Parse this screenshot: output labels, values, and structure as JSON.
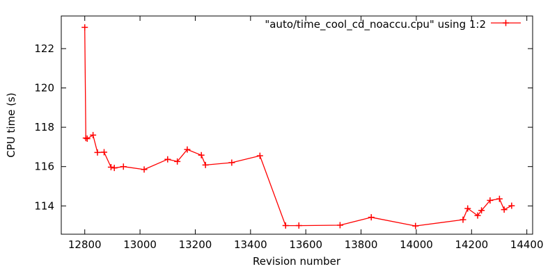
{
  "chart": {
    "legend_label": "\"auto/time_cool_cd_noaccu.cpu\" using 1:2",
    "x_title": "Revision number",
    "y_title": "CPU time (s)",
    "line_color": "#ff0000",
    "text_color": "#000000",
    "background_color": "#ffffff"
  },
  "chart_data": {
    "type": "line",
    "title": "",
    "xlabel": "Revision number",
    "ylabel": "CPU time (s)",
    "grid": false,
    "legend_position": "top-right-inside",
    "marker": "plus",
    "xlim": [
      12715,
      14421
    ],
    "ylim": [
      112.56,
      123.66
    ],
    "x_ticks": [
      12800,
      13000,
      13200,
      13400,
      13600,
      13800,
      14000,
      14200,
      14400
    ],
    "y_ticks": [
      114,
      116,
      118,
      120,
      122
    ],
    "series": [
      {
        "name": "\"auto/time_cool_cd_noaccu.cpu\" using 1:2",
        "color": "#ff0000",
        "points": [
          [
            12800,
            123.08
          ],
          [
            12804,
            117.45
          ],
          [
            12809,
            117.42
          ],
          [
            12830,
            117.6
          ],
          [
            12846,
            116.72
          ],
          [
            12870,
            116.73
          ],
          [
            12895,
            115.97
          ],
          [
            12907,
            115.93
          ],
          [
            12940,
            116.0
          ],
          [
            13015,
            115.85
          ],
          [
            13100,
            116.37
          ],
          [
            13135,
            116.26
          ],
          [
            13171,
            116.87
          ],
          [
            13222,
            116.58
          ],
          [
            13237,
            116.08
          ],
          [
            13332,
            116.2
          ],
          [
            13434,
            116.55
          ],
          [
            13527,
            113.0
          ],
          [
            13575,
            113.0
          ],
          [
            13724,
            113.02
          ],
          [
            13837,
            113.42
          ],
          [
            13997,
            112.98
          ],
          [
            14169,
            113.3
          ],
          [
            14186,
            113.87
          ],
          [
            14222,
            113.51
          ],
          [
            14236,
            113.77
          ],
          [
            14267,
            114.28
          ],
          [
            14301,
            114.36
          ],
          [
            14318,
            113.81
          ],
          [
            14345,
            114.01
          ]
        ]
      }
    ]
  }
}
